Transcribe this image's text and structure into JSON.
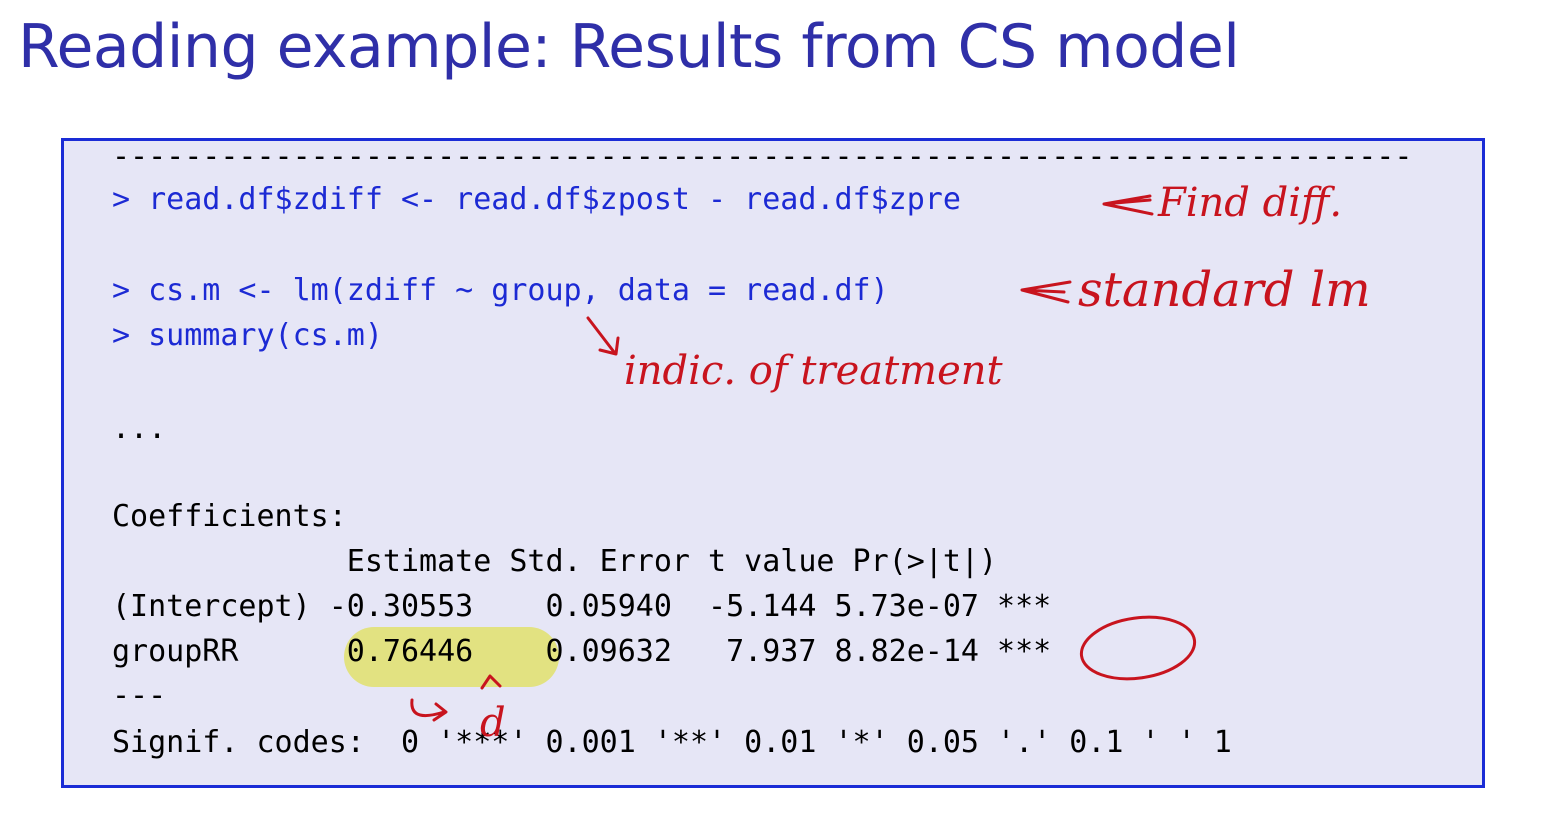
{
  "title": "Reading example: Results from CS model",
  "code": {
    "rule_top": "------------------------------------------------------------------------",
    "lines": [
      "> read.df$zdiff <- read.df$zpost - read.df$zpre",
      "> cs.m <- lm(zdiff ~ group, data = read.df)",
      "> summary(cs.m)",
      "...",
      "Coefficients:",
      "             Estimate Std. Error t value Pr(>|t|)",
      "(Intercept) -0.30553    0.05940  -5.144 5.73e-07 ***",
      "groupRR      0.76446    0.09632   7.937 8.82e-14 ***",
      "---",
      "Signif. codes:  0 '***' 0.001 '**' 0.01 '*' 0.05 '.' 0.1 ' ' 1"
    ],
    "rule_bottom": "------------------------------------------------------------------------"
  },
  "annotations": {
    "find_diff": "Find diff.",
    "standard_lm": "standard lm",
    "indic_treatment": "indic. of treatment",
    "d": "d"
  },
  "colors": {
    "title": "#2f2fa8",
    "command": "#1c2ad4",
    "box_border": "#1a2cd6",
    "box_fill": "#e6e6f6",
    "highlight": "#e2e281",
    "ink": "#c8141e"
  }
}
